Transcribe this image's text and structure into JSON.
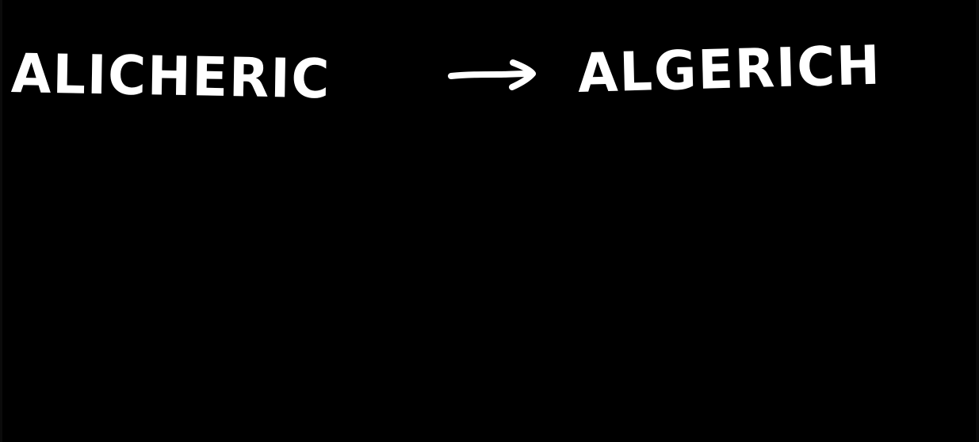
{
  "canvas": {
    "background_color": "#000000",
    "text_color": "#ffffff"
  },
  "handwriting": {
    "source_word": "ALICHERIC",
    "arrow_icon": "right-arrow-icon",
    "target_word": "ALGERICH"
  }
}
